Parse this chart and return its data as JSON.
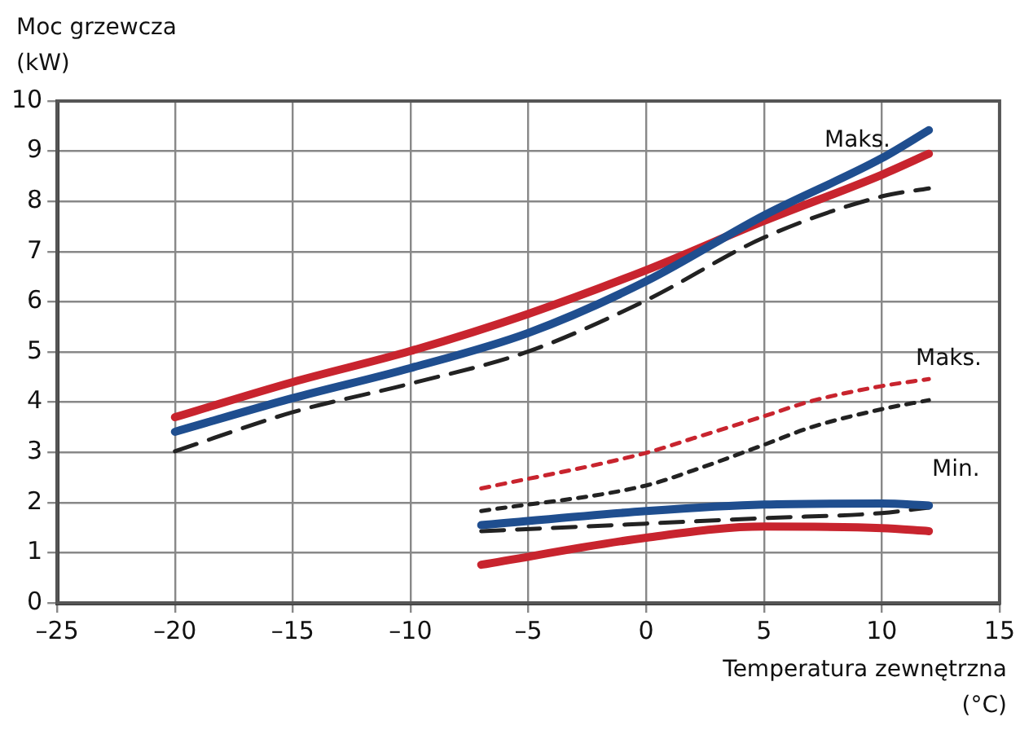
{
  "chart_data": {
    "type": "line",
    "ylabel": "Moc grzewcza (kW)",
    "xlabel": "Temperatura zewnętrzna (°C)",
    "xlim": [
      -25,
      15
    ],
    "xticks": [
      {
        "value": -25,
        "label": "–25"
      },
      {
        "value": -20,
        "label": "–20"
      },
      {
        "value": -15,
        "label": "–15"
      },
      {
        "value": -10,
        "label": "–10"
      },
      {
        "value": -5,
        "label": "–5"
      },
      0,
      5,
      10,
      15
    ],
    "ylim": [
      0,
      10
    ],
    "yticks": [
      0,
      1,
      2,
      3,
      4,
      5,
      6,
      7,
      8,
      9,
      10
    ],
    "grid": true,
    "legend": false,
    "marker": "none",
    "annotations": [
      "Maks.",
      "Maks.",
      "Min."
    ],
    "series": [
      {
        "color": "#1f4e8f",
        "line_style": "solid",
        "x": [
          -20,
          -15,
          -10,
          -5,
          0,
          5,
          10,
          12
        ],
        "values": [
          3.41,
          4.08,
          4.68,
          5.38,
          6.41,
          7.72,
          8.86,
          9.42
        ]
      },
      {
        "color": "#c8242e",
        "line_style": "solid",
        "x": [
          -20,
          -15,
          -10,
          -5,
          0,
          5,
          10,
          12
        ],
        "values": [
          3.7,
          4.4,
          5.02,
          5.76,
          6.63,
          7.61,
          8.53,
          8.95
        ]
      },
      {
        "color": "#222222",
        "line_style": "dashed",
        "x": [
          -20,
          -15,
          -10,
          -5,
          0,
          5,
          10,
          12
        ],
        "values": [
          3.02,
          3.8,
          4.37,
          5.01,
          6.03,
          7.28,
          8.1,
          8.26
        ]
      },
      {
        "color": "#c8242e",
        "line_style": "dotted",
        "x": [
          -7,
          0,
          2,
          5,
          7,
          10,
          12
        ],
        "values": [
          2.28,
          2.99,
          3.28,
          3.72,
          4.02,
          4.32,
          4.46
        ]
      },
      {
        "color": "#222222",
        "line_style": "dotted",
        "x": [
          -7,
          0,
          2,
          5,
          7,
          10,
          12
        ],
        "values": [
          1.83,
          2.34,
          2.64,
          3.15,
          3.5,
          3.86,
          4.04
        ]
      },
      {
        "color": "#1f4e8f",
        "line_style": "solid",
        "x": [
          -7,
          0,
          5,
          10,
          12
        ],
        "values": [
          1.55,
          1.83,
          1.96,
          1.98,
          1.94
        ]
      },
      {
        "color": "#c8242e",
        "line_style": "solid",
        "x": [
          -7,
          0,
          5,
          10,
          12
        ],
        "values": [
          0.76,
          1.3,
          1.52,
          1.49,
          1.43
        ]
      },
      {
        "color": "#222222",
        "line_style": "dashed",
        "x": [
          -7,
          0,
          5,
          10,
          12
        ],
        "values": [
          1.43,
          1.58,
          1.69,
          1.79,
          1.9
        ]
      }
    ]
  }
}
